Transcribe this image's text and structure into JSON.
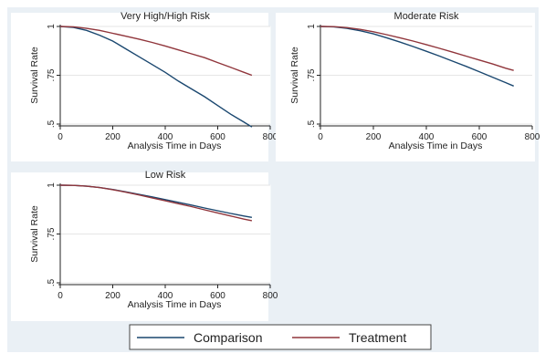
{
  "legend": {
    "items": [
      {
        "label": "Comparison",
        "color": "#1a476f"
      },
      {
        "label": "Treatment",
        "color": "#90353b"
      }
    ],
    "position": "bottom-center"
  },
  "colors": {
    "comparison": "#1a476f",
    "treatment": "#90353b",
    "gridline": "#e6e6e6",
    "background": "#ffffff"
  },
  "chart_data": [
    {
      "type": "line",
      "title": "Very High/High Risk",
      "xlabel": "Analysis Time in Days",
      "ylabel": "Survival Rate",
      "xlim": [
        0,
        800
      ],
      "ylim": [
        0.5,
        1
      ],
      "x_ticks": [
        0,
        200,
        400,
        600,
        800
      ],
      "y_ticks": [
        0.5,
        0.75,
        1
      ],
      "x_tick_labels": [
        "0",
        "200",
        "400",
        "600",
        "800"
      ],
      "y_tick_labels": [
        ".5",
        ".75",
        "1"
      ],
      "grid": true,
      "series": [
        {
          "name": "Comparison",
          "color": "#1a476f",
          "x": [
            0,
            50,
            100,
            150,
            200,
            250,
            300,
            350,
            400,
            450,
            500,
            550,
            600,
            650,
            700,
            730
          ],
          "y": [
            1.0,
            0.995,
            0.98,
            0.955,
            0.925,
            0.885,
            0.845,
            0.805,
            0.765,
            0.72,
            0.68,
            0.64,
            0.595,
            0.55,
            0.51,
            0.485
          ]
        },
        {
          "name": "Treatment",
          "color": "#90353b",
          "x": [
            0,
            50,
            100,
            150,
            200,
            250,
            300,
            350,
            400,
            450,
            500,
            550,
            600,
            650,
            700,
            730
          ],
          "y": [
            1.0,
            0.998,
            0.99,
            0.98,
            0.965,
            0.95,
            0.935,
            0.918,
            0.9,
            0.88,
            0.86,
            0.84,
            0.815,
            0.79,
            0.765,
            0.75
          ]
        }
      ]
    },
    {
      "type": "line",
      "title": "Moderate Risk",
      "xlabel": "Analysis Time in Days",
      "ylabel": "Survival Rate",
      "xlim": [
        0,
        800
      ],
      "ylim": [
        0.5,
        1
      ],
      "x_ticks": [
        0,
        200,
        400,
        600,
        800
      ],
      "y_ticks": [
        0.5,
        0.75,
        1
      ],
      "x_tick_labels": [
        "0",
        "200",
        "400",
        "600",
        "800"
      ],
      "y_tick_labels": [
        ".5",
        ".75",
        "1"
      ],
      "grid": true,
      "series": [
        {
          "name": "Comparison",
          "color": "#1a476f",
          "x": [
            0,
            50,
            100,
            150,
            200,
            250,
            300,
            350,
            400,
            450,
            500,
            550,
            600,
            650,
            700,
            730
          ],
          "y": [
            1.0,
            0.998,
            0.99,
            0.978,
            0.962,
            0.942,
            0.92,
            0.897,
            0.873,
            0.848,
            0.822,
            0.796,
            0.768,
            0.74,
            0.712,
            0.695
          ]
        },
        {
          "name": "Treatment",
          "color": "#90353b",
          "x": [
            0,
            50,
            100,
            150,
            200,
            250,
            300,
            350,
            400,
            450,
            500,
            550,
            600,
            650,
            700,
            730
          ],
          "y": [
            1.0,
            0.999,
            0.994,
            0.985,
            0.973,
            0.958,
            0.942,
            0.925,
            0.907,
            0.888,
            0.868,
            0.848,
            0.828,
            0.808,
            0.786,
            0.775
          ]
        }
      ]
    },
    {
      "type": "line",
      "title": "Low Risk",
      "xlabel": "Analysis Time in Days",
      "ylabel": "Survival Rate",
      "xlim": [
        0,
        800
      ],
      "ylim": [
        0.5,
        1
      ],
      "x_ticks": [
        0,
        200,
        400,
        600,
        800
      ],
      "y_ticks": [
        0.5,
        0.75,
        1
      ],
      "x_tick_labels": [
        "0",
        "200",
        "400",
        "600",
        "800"
      ],
      "y_tick_labels": [
        ".5",
        ".75",
        "1"
      ],
      "grid": true,
      "series": [
        {
          "name": "Comparison",
          "color": "#1a476f",
          "x": [
            0,
            50,
            100,
            150,
            200,
            250,
            300,
            350,
            400,
            450,
            500,
            550,
            600,
            650,
            700,
            730
          ],
          "y": [
            1.0,
            0.999,
            0.995,
            0.988,
            0.978,
            0.966,
            0.953,
            0.94,
            0.926,
            0.912,
            0.898,
            0.883,
            0.869,
            0.855,
            0.842,
            0.835
          ]
        },
        {
          "name": "Treatment",
          "color": "#90353b",
          "x": [
            0,
            50,
            100,
            150,
            200,
            250,
            300,
            350,
            400,
            450,
            500,
            550,
            600,
            650,
            700,
            730
          ],
          "y": [
            1.0,
            0.999,
            0.995,
            0.988,
            0.977,
            0.964,
            0.95,
            0.935,
            0.92,
            0.905,
            0.89,
            0.874,
            0.858,
            0.842,
            0.826,
            0.818
          ]
        }
      ]
    }
  ]
}
